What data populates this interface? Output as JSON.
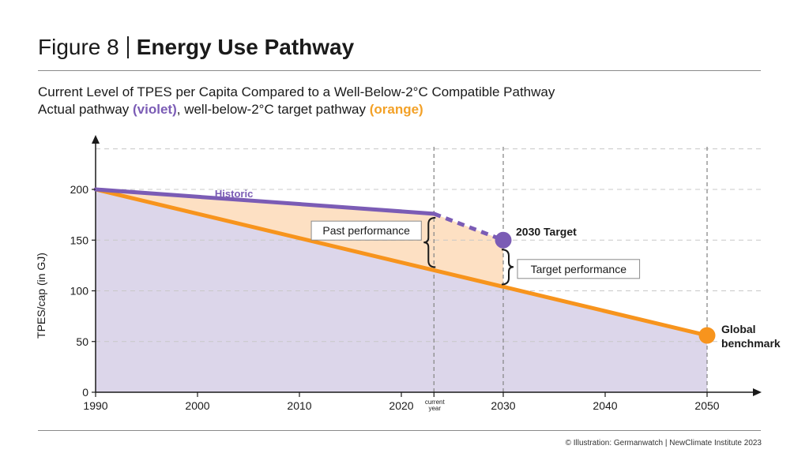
{
  "header": {
    "figure_label": "Figure 8",
    "title": "Energy Use Pathway",
    "subtitle_line1": "Current Level of TPES per Capita Compared to a Well-Below-2°C Compatible Pathway",
    "subtitle_line2_prefix": "Actual pathway ",
    "subtitle_violet": "(violet)",
    "subtitle_line2_middle": ", well-below-2°C target pathway ",
    "subtitle_orange": "(orange)"
  },
  "credit": "© Illustration: Germanwatch | NewClimate Institute 2023",
  "colors": {
    "violet": "#7b5cb5",
    "orange": "#f7941d",
    "violet_fill": "#dcd6ea",
    "orange_fill": "#fde0c3"
  },
  "chart_data": {
    "type": "line",
    "xlabel": "",
    "ylabel": "TPES/cap (in GJ)",
    "xlim": [
      1990,
      2054
    ],
    "ylim": [
      0,
      240
    ],
    "x_ticks": [
      1990,
      2000,
      2010,
      2020,
      2030,
      2040,
      2050
    ],
    "y_ticks": [
      0,
      50,
      100,
      150,
      200
    ],
    "current_year_x": 2023.2,
    "current_year_label": [
      "current",
      "year"
    ],
    "grid": "horizontal dashed",
    "series": [
      {
        "name": "Historic",
        "color": "violet",
        "points": [
          [
            1990,
            200
          ],
          [
            2023.2,
            176
          ]
        ]
      },
      {
        "name": "",
        "color": "violet",
        "style": "dashed",
        "points": [
          [
            2023.2,
            176
          ],
          [
            2030,
            150
          ]
        ]
      },
      {
        "name": "",
        "color": "orange",
        "points": [
          [
            1990,
            200
          ],
          [
            2030,
            104
          ],
          [
            2050,
            56
          ]
        ]
      }
    ],
    "markers": [
      {
        "label": "2030 Target",
        "x": 2030,
        "y": 150,
        "color": "violet"
      },
      {
        "label_lines": [
          "Global",
          "benchmark"
        ],
        "x": 2050,
        "y": 56,
        "color": "orange"
      }
    ],
    "annotations": [
      {
        "label": "Past performance",
        "from": [
          2023.2,
          176
        ],
        "to": [
          2023.2,
          121
        ]
      },
      {
        "label": "Target performance",
        "from": [
          2030,
          150
        ],
        "to": [
          2030,
          104
        ]
      }
    ]
  }
}
